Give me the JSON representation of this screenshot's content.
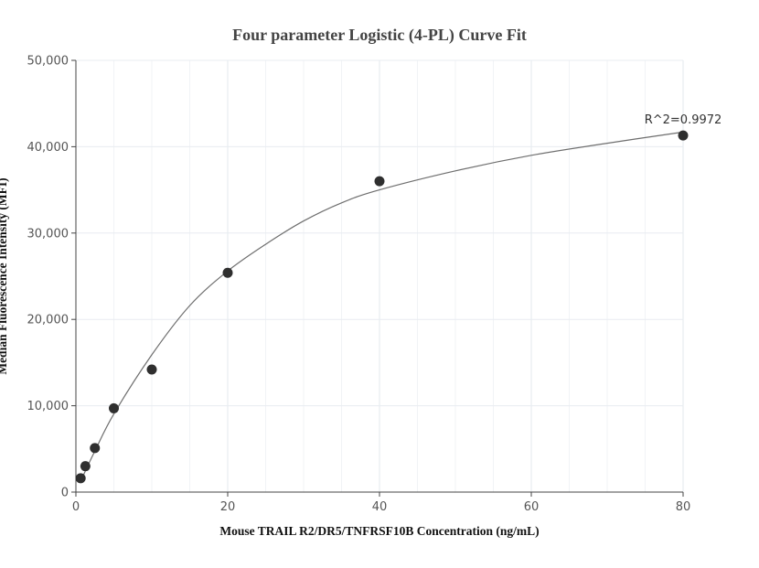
{
  "chart_data": {
    "type": "scatter",
    "title": "Four parameter Logistic (4-PL) Curve Fit",
    "xlabel": "Mouse TRAIL R2/DR5/TNFRSF10B Concentration (ng/mL)",
    "ylabel": "Median Fluorescence Intensity (MFI)",
    "xlim": [
      0,
      80
    ],
    "ylim": [
      0,
      50000
    ],
    "x_ticks": [
      0,
      20,
      40,
      60,
      80
    ],
    "x_tick_labels": [
      "0",
      "20",
      "40",
      "60",
      "80"
    ],
    "y_ticks": [
      0,
      10000,
      20000,
      30000,
      40000,
      50000
    ],
    "y_tick_labels": [
      "0",
      "10,000",
      "20,000",
      "30,000",
      "40,000",
      "50,000"
    ],
    "grid": true,
    "points": {
      "x": [
        0.625,
        1.25,
        2.5,
        5,
        10,
        20,
        40,
        80
      ],
      "y": [
        1600,
        3000,
        5100,
        9700,
        14200,
        25400,
        36000,
        41300
      ]
    },
    "fit_curve": {
      "x": [
        0.625,
        1.25,
        2.5,
        5,
        10,
        15,
        20,
        25,
        30,
        35,
        40,
        50,
        60,
        70,
        80
      ],
      "y": [
        1250,
        2450,
        4750,
        9050,
        15900,
        21600,
        25600,
        28700,
        31400,
        33500,
        35000,
        37200,
        39000,
        40400,
        41700
      ]
    },
    "annotation": "R^2=0.9972",
    "colors": {
      "points": "#2f2f2f",
      "curve": "#6e6e6e",
      "grid": "#e8ecf1",
      "axis": "#444444",
      "tick_text": "#555555",
      "title_text": "#444444"
    }
  }
}
